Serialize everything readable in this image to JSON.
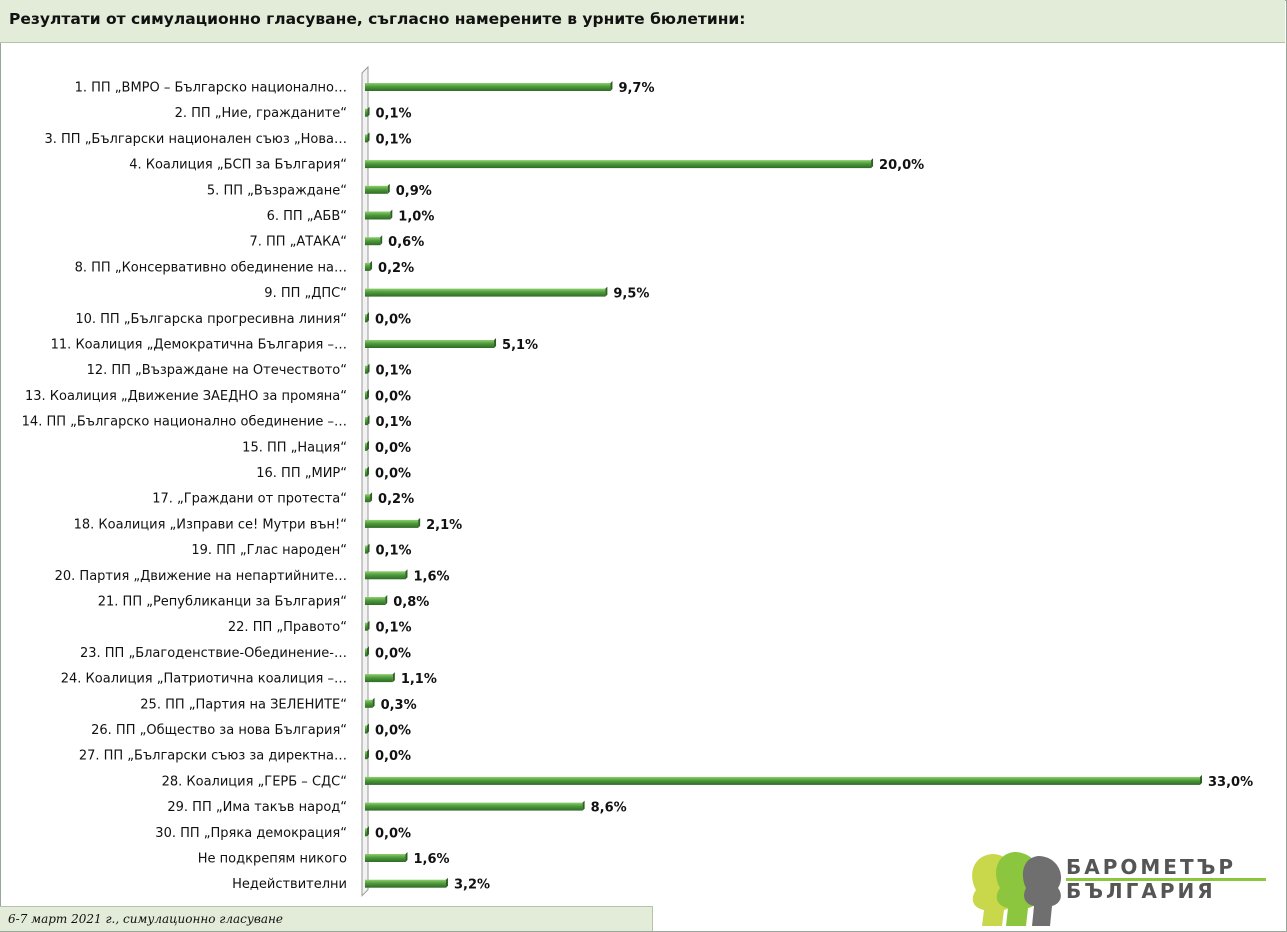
{
  "title": "Резултати от симулационно гласуване, съгласно намерените в урните бюлетини:",
  "footer": "6-7 март 2021 г., симулационно гласуване",
  "logo": {
    "line1": "БАРОМЕТЪР",
    "line2": "БЪЛГАРИЯ"
  },
  "colors": {
    "bar": "#4a8b3a",
    "bar_top": "#7cbf5e",
    "header_bg": "#e2ecd9",
    "logo_green": "#8cc63f"
  },
  "chart_data": {
    "type": "bar",
    "orientation": "horizontal",
    "xlim": [
      0,
      33
    ],
    "categories": [
      "1. ПП „ВМРО – Българско национално…",
      "2. ПП „Ние, гражданите“",
      "3. ПП „Български национален съюз „Нова…",
      "4. Коалиция „БСП за България“",
      "5. ПП „Възраждане“",
      "6. ПП „АБВ“",
      "7. ПП „АТАКА“",
      "8. ПП „Консервативно обединение на…",
      "9. ПП „ДПС“",
      "10. ПП „Българска прогресивна линия“",
      "11. Коалиция „Демократична България –…",
      "12. ПП „Възраждане на Отечеството“",
      "13. Коалиция „Движение ЗАЕДНО за промяна“",
      "14. ПП „Българско национално обединение –…",
      "15. ПП „Нация“",
      "16. ПП „МИР“",
      "17. „Граждани от протеста“",
      "18. Коалиция „Изправи се! Мутри вън!“",
      "19. ПП „Глас народен“",
      "20. Партия „Движение на непартийните…",
      "21. ПП „Републиканци за България“",
      "22. ПП „Правото“",
      "23. ПП „Благоденствие-Обединение-…",
      "24. Коалиция „Патриотична коалиция –…",
      "25. ПП „Партия на ЗЕЛЕНИТЕ“",
      "26. ПП „Общество за нова България“",
      "27. ПП „Български съюз за директна…",
      "28. Коалиция „ГЕРБ – СДС“",
      "29. ПП „Има такъв народ“",
      "30. ПП „Пряка демокрация“",
      "Не подкрепям никого",
      "Недействителни"
    ],
    "values": [
      9.7,
      0.1,
      0.1,
      20.0,
      0.9,
      1.0,
      0.6,
      0.2,
      9.5,
      0.0,
      5.1,
      0.1,
      0.0,
      0.1,
      0.0,
      0.0,
      0.2,
      2.1,
      0.1,
      1.6,
      0.8,
      0.1,
      0.0,
      1.1,
      0.3,
      0.0,
      0.0,
      33.0,
      8.6,
      0.0,
      1.6,
      3.2
    ],
    "labels": [
      "9,7%",
      "0,1%",
      "0,1%",
      "20,0%",
      "0,9%",
      "1,0%",
      "0,6%",
      "0,2%",
      "9,5%",
      "0,0%",
      "5,1%",
      "0,1%",
      "0,0%",
      "0,1%",
      "0,0%",
      "0,0%",
      "0,2%",
      "2,1%",
      "0,1%",
      "1,6%",
      "0,8%",
      "0,1%",
      "0,0%",
      "1,1%",
      "0,3%",
      "0,0%",
      "0,0%",
      "33,0%",
      "8,6%",
      "0,0%",
      "1,6%",
      "3,2%"
    ],
    "grid": false,
    "legend": "none"
  }
}
